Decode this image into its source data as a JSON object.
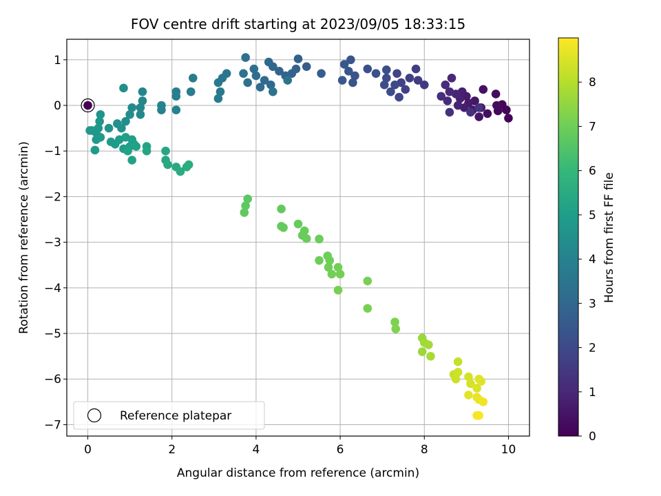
{
  "chart_data": {
    "type": "scatter",
    "title": "FOV centre drift starting at 2023/09/05 18:33:15",
    "xlabel": "Angular distance from reference (arcmin)",
    "ylabel": "Rotation from reference (arcmin)",
    "xlim": [
      -0.5,
      10.5
    ],
    "ylim": [
      -7.25,
      1.45
    ],
    "xticks": [
      "0",
      "2",
      "4",
      "6",
      "8",
      "10"
    ],
    "yticks": [
      "1",
      "0",
      "−1",
      "−2",
      "−3",
      "−4",
      "−5",
      "−6",
      "−7"
    ],
    "grid": true,
    "colorbar": {
      "label": "Hours from first FF file",
      "range": [
        0,
        9
      ],
      "ticks": [
        "0",
        "1",
        "2",
        "3",
        "4",
        "5",
        "6",
        "7",
        "8"
      ],
      "colormap": "viridis"
    },
    "legend": {
      "position": "lower-left",
      "entries": [
        "Reference platepar"
      ]
    },
    "reference_point": {
      "x": 0.0,
      "y": 0.0,
      "hours": 0.0
    },
    "points": [
      {
        "x": 10.0,
        "y": -0.28,
        "h": 0.05
      },
      {
        "x": 9.95,
        "y": -0.1,
        "h": 0.1
      },
      {
        "x": 9.85,
        "y": 0.02,
        "h": 0.15
      },
      {
        "x": 9.75,
        "y": -0.12,
        "h": 0.2
      },
      {
        "x": 9.7,
        "y": 0.25,
        "h": 0.25
      },
      {
        "x": 9.72,
        "y": 0.0,
        "h": 0.3
      },
      {
        "x": 9.5,
        "y": -0.18,
        "h": 0.35
      },
      {
        "x": 9.4,
        "y": 0.35,
        "h": 0.4
      },
      {
        "x": 9.35,
        "y": -0.05,
        "h": 0.45
      },
      {
        "x": 9.3,
        "y": -0.25,
        "h": 0.5
      },
      {
        "x": 9.2,
        "y": 0.1,
        "h": 0.55
      },
      {
        "x": 9.15,
        "y": -0.1,
        "h": 0.6
      },
      {
        "x": 9.05,
        "y": 0.05,
        "h": 0.65
      },
      {
        "x": 9.0,
        "y": 0.2,
        "h": 0.7
      },
      {
        "x": 8.95,
        "y": -0.05,
        "h": 0.75
      },
      {
        "x": 8.9,
        "y": 0.3,
        "h": 0.8
      },
      {
        "x": 8.85,
        "y": 0.15,
        "h": 0.85
      },
      {
        "x": 8.8,
        "y": 0.0,
        "h": 0.9
      },
      {
        "x": 8.75,
        "y": 0.25,
        "h": 0.95
      },
      {
        "x": 8.65,
        "y": 0.6,
        "h": 1.0
      },
      {
        "x": 8.6,
        "y": 0.3,
        "h": 1.05
      },
      {
        "x": 8.55,
        "y": 0.1,
        "h": 1.1
      },
      {
        "x": 8.5,
        "y": 0.45,
        "h": 1.15
      },
      {
        "x": 8.4,
        "y": 0.2,
        "h": 1.2
      },
      {
        "x": 8.6,
        "y": -0.15,
        "h": 1.25
      },
      {
        "x": 9.1,
        "y": -0.15,
        "h": 1.3
      },
      {
        "x": 9.3,
        "y": -0.05,
        "h": 1.35
      },
      {
        "x": 8.0,
        "y": 0.45,
        "h": 1.5
      },
      {
        "x": 7.85,
        "y": 0.55,
        "h": 1.6
      },
      {
        "x": 7.8,
        "y": 0.8,
        "h": 1.65
      },
      {
        "x": 7.65,
        "y": 0.6,
        "h": 1.7
      },
      {
        "x": 7.55,
        "y": 0.35,
        "h": 1.75
      },
      {
        "x": 7.45,
        "y": 0.5,
        "h": 1.8
      },
      {
        "x": 7.35,
        "y": 0.7,
        "h": 1.85
      },
      {
        "x": 7.4,
        "y": 0.18,
        "h": 1.9
      },
      {
        "x": 7.3,
        "y": 0.45,
        "h": 1.95
      },
      {
        "x": 7.2,
        "y": 0.3,
        "h": 2.0
      },
      {
        "x": 7.1,
        "y": 0.6,
        "h": 2.05
      },
      {
        "x": 7.05,
        "y": 0.45,
        "h": 2.1
      },
      {
        "x": 7.1,
        "y": 0.78,
        "h": 2.12
      },
      {
        "x": 6.85,
        "y": 0.7,
        "h": 2.15
      },
      {
        "x": 6.65,
        "y": 0.8,
        "h": 2.2
      },
      {
        "x": 6.35,
        "y": 0.65,
        "h": 2.25
      },
      {
        "x": 6.3,
        "y": 0.5,
        "h": 2.3
      },
      {
        "x": 6.25,
        "y": 1.0,
        "h": 2.35
      },
      {
        "x": 6.2,
        "y": 0.75,
        "h": 2.4
      },
      {
        "x": 6.1,
        "y": 0.9,
        "h": 2.45
      },
      {
        "x": 6.05,
        "y": 0.55,
        "h": 2.5
      },
      {
        "x": 5.55,
        "y": 0.7,
        "h": 2.6
      },
      {
        "x": 5.2,
        "y": 0.85,
        "h": 2.65
      },
      {
        "x": 5.0,
        "y": 1.02,
        "h": 2.7
      },
      {
        "x": 4.95,
        "y": 0.8,
        "h": 2.75
      },
      {
        "x": 4.85,
        "y": 0.7,
        "h": 2.8
      },
      {
        "x": 4.7,
        "y": 0.65,
        "h": 2.85
      },
      {
        "x": 4.55,
        "y": 0.75,
        "h": 2.9
      },
      {
        "x": 4.4,
        "y": 0.85,
        "h": 2.95
      },
      {
        "x": 4.3,
        "y": 0.95,
        "h": 3.0
      },
      {
        "x": 4.35,
        "y": 0.45,
        "h": 3.05
      },
      {
        "x": 4.2,
        "y": 0.55,
        "h": 3.1
      },
      {
        "x": 4.1,
        "y": 0.4,
        "h": 3.15
      },
      {
        "x": 4.0,
        "y": 0.65,
        "h": 3.2
      },
      {
        "x": 3.95,
        "y": 0.8,
        "h": 3.25
      },
      {
        "x": 3.75,
        "y": 1.05,
        "h": 3.3
      },
      {
        "x": 3.8,
        "y": 0.5,
        "h": 3.35
      },
      {
        "x": 3.7,
        "y": 0.7,
        "h": 3.4
      },
      {
        "x": 4.4,
        "y": 0.3,
        "h": 3.42
      },
      {
        "x": 4.75,
        "y": 0.55,
        "h": 3.45
      },
      {
        "x": 3.3,
        "y": 0.7,
        "h": 3.5
      },
      {
        "x": 3.2,
        "y": 0.6,
        "h": 3.55
      },
      {
        "x": 3.1,
        "y": 0.5,
        "h": 3.6
      },
      {
        "x": 3.15,
        "y": 0.3,
        "h": 3.65
      },
      {
        "x": 3.1,
        "y": 0.15,
        "h": 3.7
      },
      {
        "x": 2.5,
        "y": 0.6,
        "h": 3.75
      },
      {
        "x": 2.45,
        "y": 0.3,
        "h": 3.8
      },
      {
        "x": 2.1,
        "y": 0.3,
        "h": 3.85
      },
      {
        "x": 2.1,
        "y": 0.2,
        "h": 3.9
      },
      {
        "x": 2.1,
        "y": -0.1,
        "h": 3.95
      },
      {
        "x": 1.75,
        "y": 0.0,
        "h": 4.0
      },
      {
        "x": 1.75,
        "y": -0.1,
        "h": 4.05
      },
      {
        "x": 1.3,
        "y": 0.3,
        "h": 4.1
      },
      {
        "x": 1.3,
        "y": 0.1,
        "h": 4.15
      },
      {
        "x": 1.25,
        "y": -0.05,
        "h": 4.2
      },
      {
        "x": 1.25,
        "y": -0.2,
        "h": 4.25
      },
      {
        "x": 1.05,
        "y": -0.05,
        "h": 4.3
      },
      {
        "x": 1.0,
        "y": -0.2,
        "h": 4.35
      },
      {
        "x": 0.9,
        "y": -0.35,
        "h": 4.4
      },
      {
        "x": 0.85,
        "y": 0.38,
        "h": 4.45
      },
      {
        "x": 0.8,
        "y": -0.5,
        "h": 4.5
      },
      {
        "x": 0.7,
        "y": -0.4,
        "h": 4.55
      },
      {
        "x": 0.5,
        "y": -0.5,
        "h": 4.6
      },
      {
        "x": 0.3,
        "y": -0.2,
        "h": 4.65
      },
      {
        "x": 0.28,
        "y": -0.35,
        "h": 4.7
      },
      {
        "x": 0.25,
        "y": -0.5,
        "h": 4.72
      },
      {
        "x": 0.2,
        "y": -0.6,
        "h": 4.75
      },
      {
        "x": 0.1,
        "y": -0.55,
        "h": 4.78
      },
      {
        "x": 0.05,
        "y": -0.55,
        "h": 4.8
      },
      {
        "x": 0.2,
        "y": -0.75,
        "h": 4.82
      },
      {
        "x": 0.3,
        "y": -0.7,
        "h": 4.85
      },
      {
        "x": 0.17,
        "y": -0.98,
        "h": 4.88
      },
      {
        "x": 0.55,
        "y": -0.8,
        "h": 4.9
      },
      {
        "x": 0.65,
        "y": -0.85,
        "h": 4.93
      },
      {
        "x": 0.75,
        "y": -0.75,
        "h": 4.95
      },
      {
        "x": 0.85,
        "y": -0.95,
        "h": 4.98
      },
      {
        "x": 0.9,
        "y": -0.7,
        "h": 5.0
      },
      {
        "x": 1.0,
        "y": -0.9,
        "h": 5.02
      },
      {
        "x": 1.05,
        "y": -0.75,
        "h": 5.05
      },
      {
        "x": 1.1,
        "y": -0.85,
        "h": 5.08
      },
      {
        "x": 1.15,
        "y": -0.9,
        "h": 5.1
      },
      {
        "x": 1.05,
        "y": -1.2,
        "h": 5.12
      },
      {
        "x": 0.95,
        "y": -1.0,
        "h": 5.15
      },
      {
        "x": 1.4,
        "y": -0.9,
        "h": 5.2
      },
      {
        "x": 1.4,
        "y": -1.0,
        "h": 5.25
      },
      {
        "x": 1.85,
        "y": -1.0,
        "h": 5.3
      },
      {
        "x": 1.85,
        "y": -1.2,
        "h": 5.35
      },
      {
        "x": 1.9,
        "y": -1.3,
        "h": 5.4
      },
      {
        "x": 2.1,
        "y": -1.35,
        "h": 5.45
      },
      {
        "x": 2.2,
        "y": -1.45,
        "h": 5.5
      },
      {
        "x": 2.35,
        "y": -1.35,
        "h": 5.55
      },
      {
        "x": 2.4,
        "y": -1.3,
        "h": 5.6
      },
      {
        "x": 3.8,
        "y": -2.05,
        "h": 6.7
      },
      {
        "x": 3.75,
        "y": -2.2,
        "h": 6.72
      },
      {
        "x": 3.72,
        "y": -2.35,
        "h": 6.75
      },
      {
        "x": 4.6,
        "y": -2.27,
        "h": 6.8
      },
      {
        "x": 4.6,
        "y": -2.65,
        "h": 6.82
      },
      {
        "x": 4.65,
        "y": -2.68,
        "h": 6.84
      },
      {
        "x": 5.0,
        "y": -2.6,
        "h": 6.86
      },
      {
        "x": 5.1,
        "y": -2.85,
        "h": 6.88
      },
      {
        "x": 5.15,
        "y": -2.75,
        "h": 6.9
      },
      {
        "x": 5.2,
        "y": -2.92,
        "h": 6.92
      },
      {
        "x": 5.5,
        "y": -2.93,
        "h": 6.94
      },
      {
        "x": 5.5,
        "y": -3.4,
        "h": 6.96
      },
      {
        "x": 5.7,
        "y": -3.3,
        "h": 6.98
      },
      {
        "x": 5.75,
        "y": -3.4,
        "h": 7.0
      },
      {
        "x": 5.72,
        "y": -3.55,
        "h": 7.02
      },
      {
        "x": 5.8,
        "y": -3.7,
        "h": 7.04
      },
      {
        "x": 5.95,
        "y": -3.55,
        "h": 7.06
      },
      {
        "x": 6.0,
        "y": -3.7,
        "h": 7.08
      },
      {
        "x": 5.95,
        "y": -4.05,
        "h": 7.1
      },
      {
        "x": 6.65,
        "y": -3.85,
        "h": 7.12
      },
      {
        "x": 6.65,
        "y": -4.45,
        "h": 7.14
      },
      {
        "x": 7.3,
        "y": -4.75,
        "h": 7.2
      },
      {
        "x": 7.32,
        "y": -4.9,
        "h": 7.25
      },
      {
        "x": 7.95,
        "y": -5.1,
        "h": 7.6
      },
      {
        "x": 7.95,
        "y": -5.4,
        "h": 7.65
      },
      {
        "x": 8.0,
        "y": -5.2,
        "h": 7.7
      },
      {
        "x": 8.1,
        "y": -5.25,
        "h": 7.75
      },
      {
        "x": 8.15,
        "y": -5.5,
        "h": 7.8
      },
      {
        "x": 8.8,
        "y": -5.62,
        "h": 8.2
      },
      {
        "x": 8.7,
        "y": -5.9,
        "h": 8.25
      },
      {
        "x": 8.75,
        "y": -6.0,
        "h": 8.3
      },
      {
        "x": 8.8,
        "y": -5.85,
        "h": 8.35
      },
      {
        "x": 9.05,
        "y": -5.95,
        "h": 8.4
      },
      {
        "x": 9.1,
        "y": -6.1,
        "h": 8.45
      },
      {
        "x": 9.25,
        "y": -6.2,
        "h": 8.5
      },
      {
        "x": 9.3,
        "y": -6.0,
        "h": 8.55
      },
      {
        "x": 9.35,
        "y": -6.05,
        "h": 8.6
      },
      {
        "x": 9.05,
        "y": -6.35,
        "h": 8.65
      },
      {
        "x": 9.25,
        "y": -6.4,
        "h": 8.7
      },
      {
        "x": 9.3,
        "y": -6.45,
        "h": 8.75
      },
      {
        "x": 9.4,
        "y": -6.5,
        "h": 8.8
      },
      {
        "x": 9.25,
        "y": -6.8,
        "h": 8.85
      },
      {
        "x": 9.3,
        "y": -6.8,
        "h": 8.9
      }
    ]
  }
}
